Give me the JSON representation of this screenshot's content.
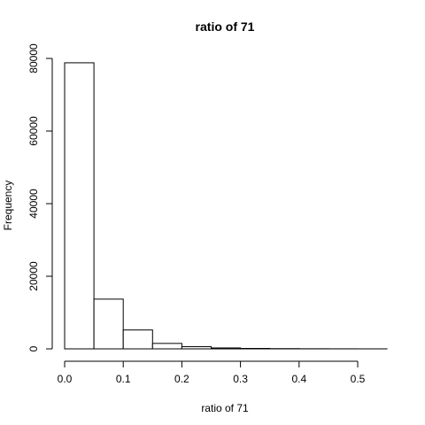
{
  "chart_data": {
    "type": "bar",
    "title": "ratio of 71",
    "xlabel": "ratio of 71",
    "ylabel": "Frequency",
    "bin_edges": [
      0.0,
      0.05,
      0.1,
      0.15,
      0.2,
      0.25,
      0.3,
      0.35,
      0.4,
      0.45,
      0.5,
      0.55
    ],
    "values": [
      78800,
      13700,
      5200,
      1500,
      600,
      250,
      120,
      60,
      30,
      15,
      5
    ],
    "x_ticks": [
      "0.0",
      "0.1",
      "0.2",
      "0.3",
      "0.4",
      "0.5"
    ],
    "x_tick_values": [
      0.0,
      0.1,
      0.2,
      0.3,
      0.4,
      0.5
    ],
    "y_ticks": [
      "0",
      "20000",
      "40000",
      "60000",
      "80000"
    ],
    "y_tick_values": [
      0,
      20000,
      40000,
      60000,
      80000
    ],
    "grid": false
  }
}
